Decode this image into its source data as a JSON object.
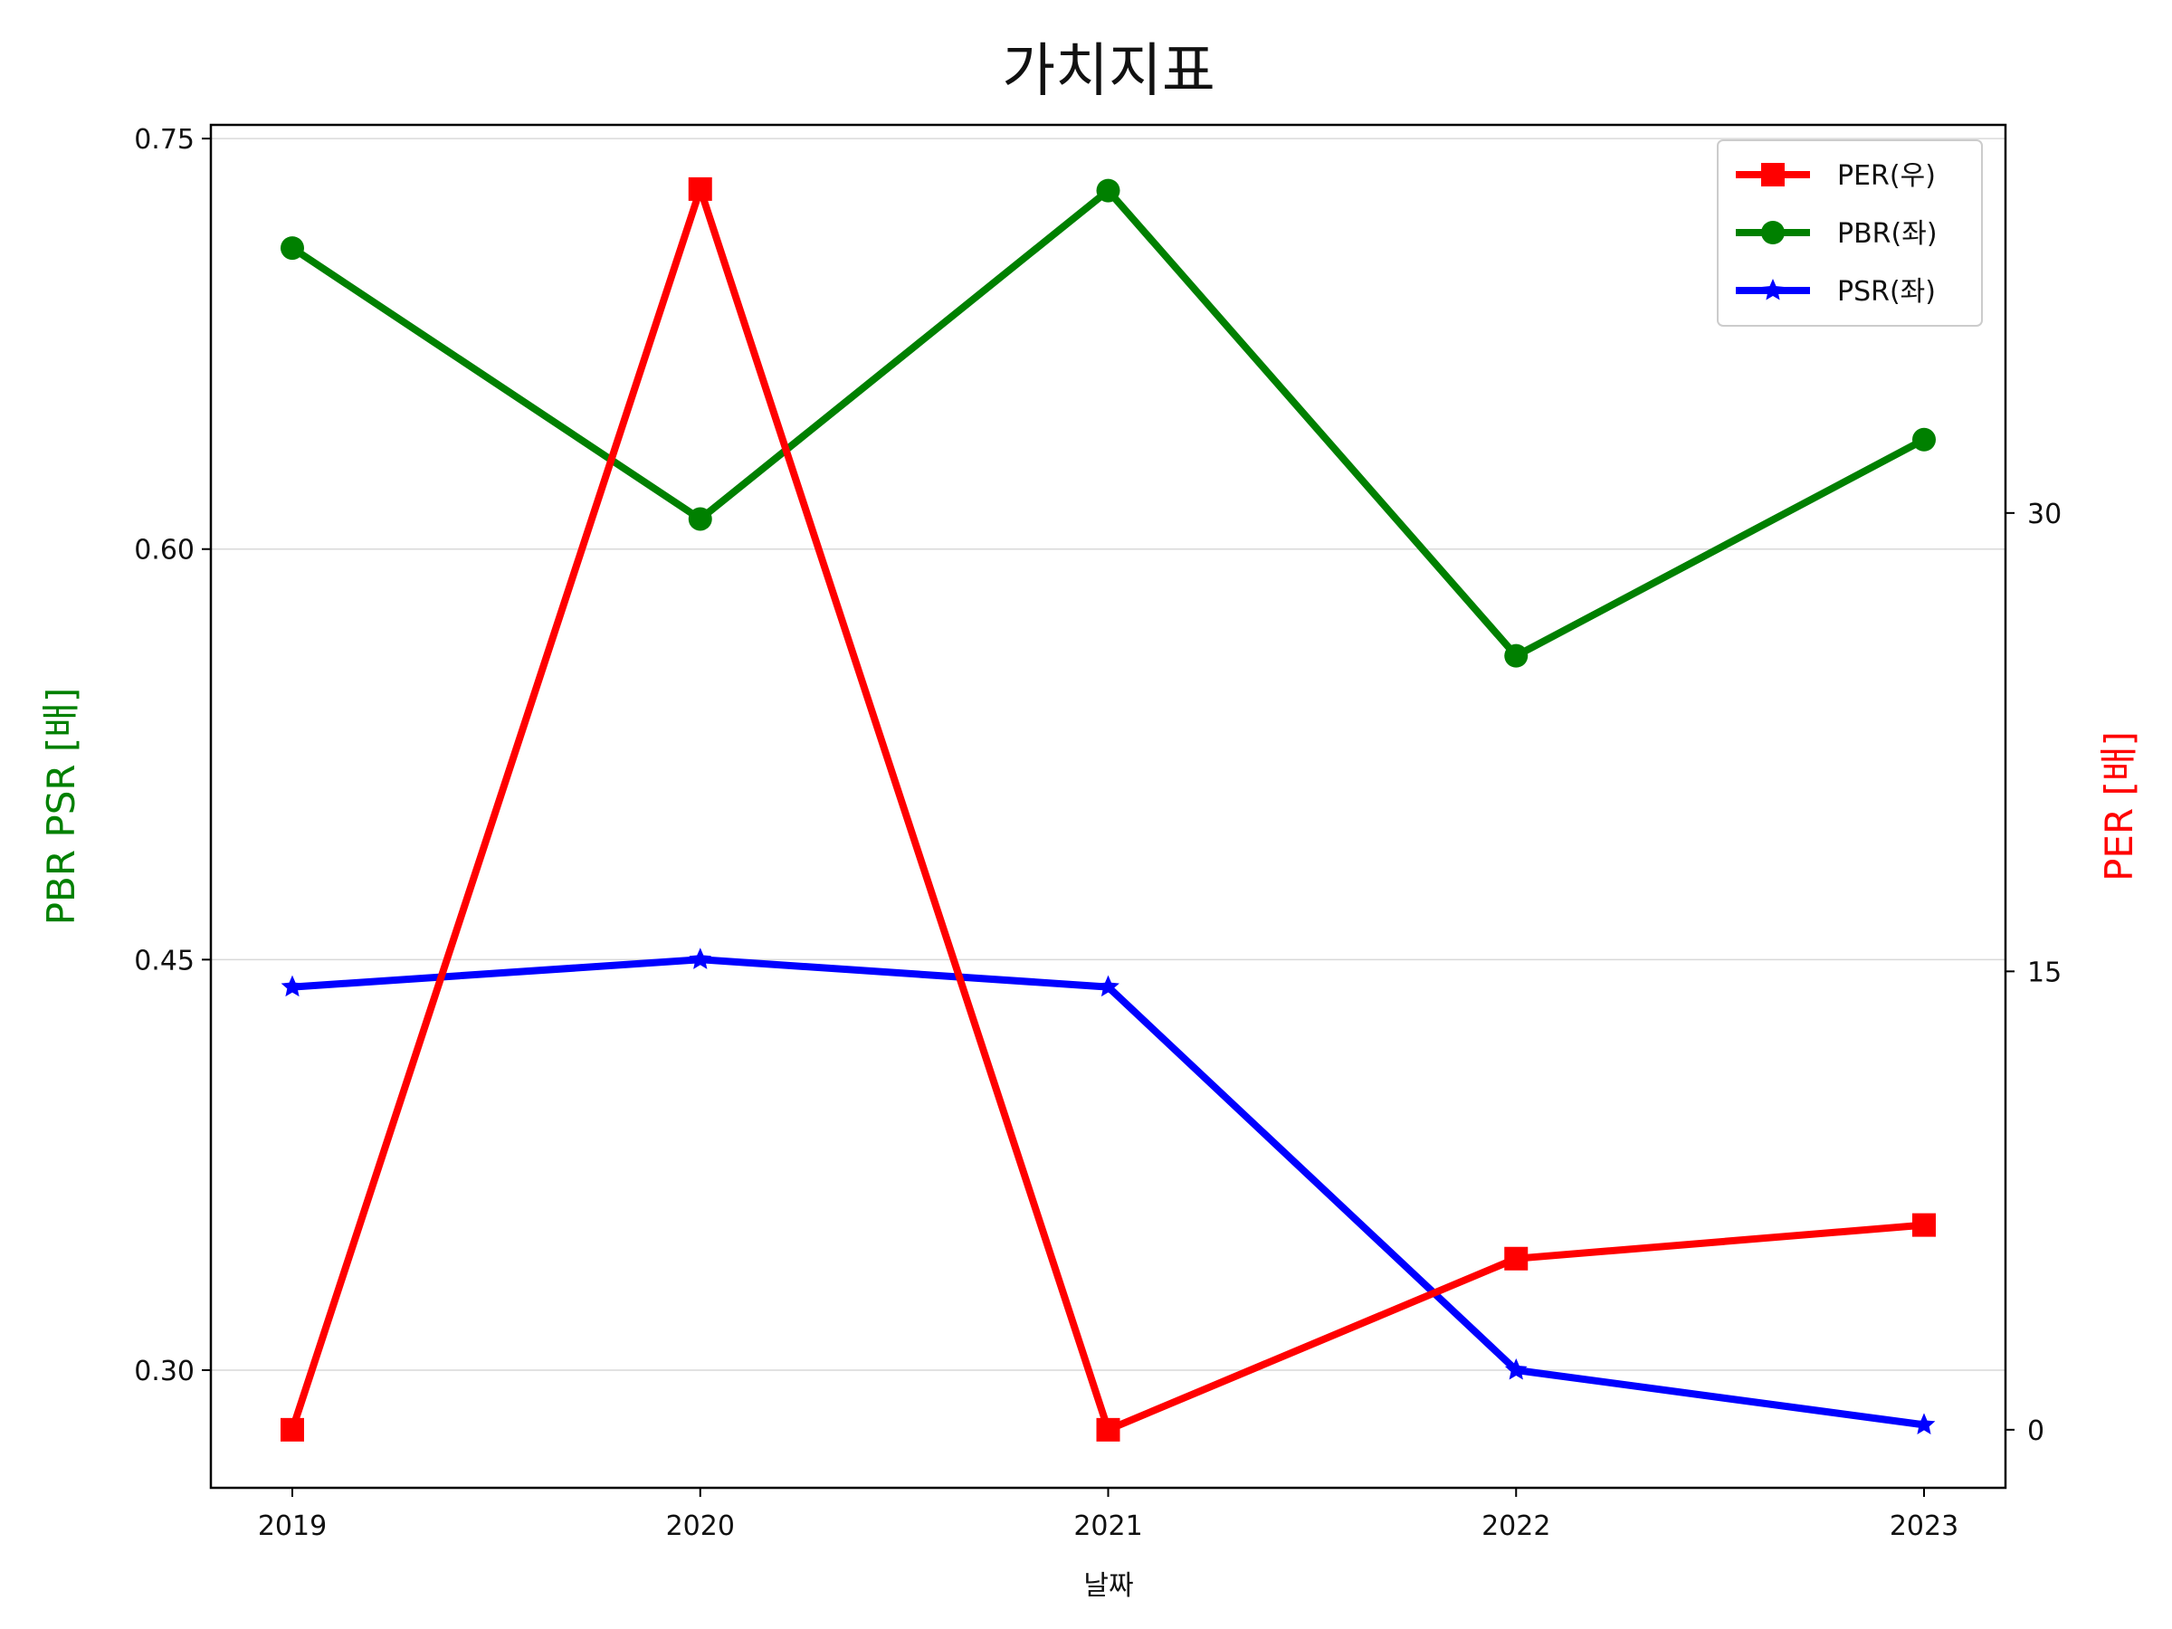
{
  "chart_data": {
    "type": "line",
    "title": "가치지표",
    "xlabel": "날짜",
    "ylabel_left": "PBR PSR [배]",
    "ylabel_right": "PER [배]",
    "categories": [
      "2019",
      "2020",
      "2021",
      "2022",
      "2023"
    ],
    "left_axis": {
      "ylim": [
        0.257,
        0.755
      ],
      "ticks": [
        0.3,
        0.45,
        0.6,
        0.75
      ],
      "tick_labels": [
        "0.30",
        "0.45",
        "0.60",
        "0.75"
      ]
    },
    "right_axis": {
      "ylim": [
        -1.9,
        42.7
      ],
      "ticks": [
        0,
        15,
        30
      ],
      "tick_labels": [
        "0",
        "15",
        "30"
      ]
    },
    "series": [
      {
        "name": "PER(우)",
        "axis": "right",
        "color": "#ff0000",
        "marker": "square",
        "values": [
          0,
          40.6,
          0,
          5.6,
          6.7
        ]
      },
      {
        "name": "PBR(좌)",
        "axis": "left",
        "color": "#008000",
        "marker": "circle",
        "values": [
          0.71,
          0.611,
          0.731,
          0.561,
          0.64
        ]
      },
      {
        "name": "PSR(좌)",
        "axis": "left",
        "color": "#0000ff",
        "marker": "star",
        "values": [
          0.44,
          0.45,
          0.44,
          0.3,
          0.28
        ]
      }
    ],
    "grid": "horizontal (left axis)",
    "legend_position": "top-right"
  }
}
